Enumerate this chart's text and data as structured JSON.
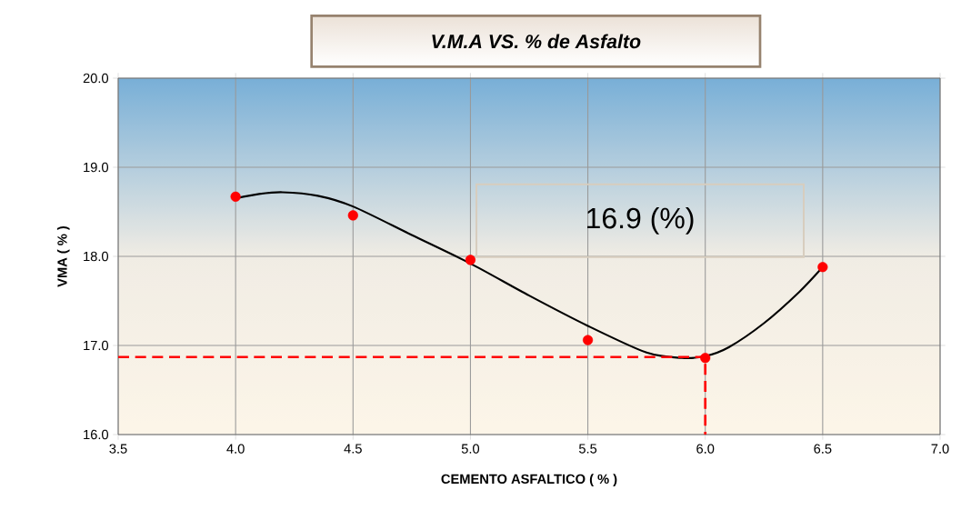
{
  "chart_data": {
    "type": "scatter",
    "title": "V.M.A  VS.  % de Asfalto",
    "xlabel": "CEMENTO ASFALTICO ( % )",
    "ylabel": "VMA ( % )",
    "xlim": [
      3.5,
      7.0
    ],
    "ylim": [
      16.0,
      20.0
    ],
    "xticks": [
      {
        "value": 3.5,
        "label": "3.5"
      },
      {
        "value": 4.0,
        "label": "4.0"
      },
      {
        "value": 4.5,
        "label": "4.5"
      },
      {
        "value": 5.0,
        "label": "5.0"
      },
      {
        "value": 5.5,
        "label": "5.5"
      },
      {
        "value": 6.0,
        "label": "6.0"
      },
      {
        "value": 6.5,
        "label": "6.5"
      },
      {
        "value": 7.0,
        "label": "7.0"
      }
    ],
    "yticks": [
      {
        "value": 16.0,
        "label": "16.0"
      },
      {
        "value": 17.0,
        "label": "17.0"
      },
      {
        "value": 18.0,
        "label": "18.0"
      },
      {
        "value": 19.0,
        "label": "19.0"
      },
      {
        "value": 20.0,
        "label": "20.0"
      }
    ],
    "grid": true,
    "marker": "circle",
    "annotations": [
      "16.9 (%)"
    ],
    "series": [
      {
        "type": "line",
        "color": "#000000",
        "line_style": "solid",
        "marker": "none",
        "x": [
          4.0,
          4.1,
          4.2,
          4.35,
          4.5,
          4.75,
          5.0,
          5.25,
          5.5,
          5.75,
          5.9,
          6.0,
          6.1,
          6.25,
          6.4,
          6.5
        ],
        "values": [
          18.65,
          18.7,
          18.72,
          18.68,
          18.56,
          18.24,
          17.92,
          17.56,
          17.22,
          16.92,
          16.86,
          16.88,
          16.98,
          17.25,
          17.6,
          17.88
        ]
      },
      {
        "type": "line",
        "color": "#ff0000",
        "line_style": "dashed",
        "marker": "none",
        "x": [
          3.5,
          6.0,
          6.0
        ],
        "values": [
          16.87,
          16.87,
          16.0
        ]
      },
      {
        "color": "#ff0000",
        "x": [
          4.0,
          4.5,
          5.0,
          5.5,
          6.0,
          6.5
        ],
        "values": [
          18.67,
          18.46,
          17.96,
          17.06,
          16.86,
          17.88
        ]
      }
    ]
  }
}
